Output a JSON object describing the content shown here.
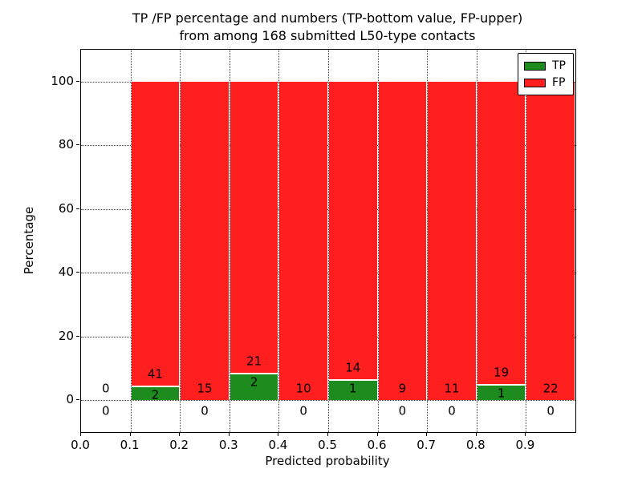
{
  "chart_data": {
    "type": "bar",
    "stacked": true,
    "title_line1": "TP /FP percentage and numbers (TP-bottom value, FP-upper)",
    "title_line2": "from among 168 submitted L50-type contacts",
    "xlabel": "Predicted probability",
    "ylabel": "Percentage",
    "xlim": [
      0.0,
      1.0
    ],
    "ylim": [
      -10,
      110
    ],
    "grid": "dotted",
    "xticks": [
      0.0,
      0.1,
      0.2,
      0.3,
      0.4,
      0.5,
      0.6,
      0.7,
      0.8,
      0.9
    ],
    "xtick_labels": [
      "0.0",
      "0.1",
      "0.2",
      "0.3",
      "0.4",
      "0.5",
      "0.6",
      "0.7",
      "0.8",
      "0.9"
    ],
    "yticks": [
      0,
      20,
      40,
      60,
      80,
      100
    ],
    "ytick_labels": [
      "0",
      "20",
      "40",
      "60",
      "80",
      "100"
    ],
    "total_contacts": 168,
    "bins": [
      {
        "range": [
          0.0,
          0.1
        ],
        "tp_count": 0,
        "fp_count": 0,
        "tp_label": "0",
        "fp_label": "0"
      },
      {
        "range": [
          0.1,
          0.2
        ],
        "tp_count": 2,
        "fp_count": 41,
        "tp_label": "2",
        "fp_label": "41"
      },
      {
        "range": [
          0.2,
          0.3
        ],
        "tp_count": 0,
        "fp_count": 15,
        "tp_label": "0",
        "fp_label": "15"
      },
      {
        "range": [
          0.3,
          0.4
        ],
        "tp_count": 2,
        "fp_count": 21,
        "tp_label": "2",
        "fp_label": "21"
      },
      {
        "range": [
          0.4,
          0.5
        ],
        "tp_count": 0,
        "fp_count": 10,
        "tp_label": "0",
        "fp_label": "10"
      },
      {
        "range": [
          0.5,
          0.6
        ],
        "tp_count": 1,
        "fp_count": 14,
        "tp_label": "1",
        "fp_label": "14"
      },
      {
        "range": [
          0.6,
          0.7
        ],
        "tp_count": 0,
        "fp_count": 9,
        "tp_label": "0",
        "fp_label": "9"
      },
      {
        "range": [
          0.7,
          0.8
        ],
        "tp_count": 0,
        "fp_count": 11,
        "tp_label": "0",
        "fp_label": "11"
      },
      {
        "range": [
          0.8,
          0.9
        ],
        "tp_count": 1,
        "fp_count": 19,
        "tp_label": "1",
        "fp_label": "19"
      },
      {
        "range": [
          0.9,
          1.0
        ],
        "tp_count": 0,
        "fp_count": 22,
        "tp_label": "0",
        "fp_label": "22"
      }
    ],
    "legend": [
      {
        "label": "TP",
        "color": "#1e8b1e"
      },
      {
        "label": "FP",
        "color": "#ff1f1f"
      }
    ],
    "colors": {
      "tp_bar": "#1e8b1e",
      "fp_bar": "#ff1f1f",
      "segment_edge": "#ffffff",
      "grid": "#4a4a4a",
      "text": "#000000",
      "background": "#ffffff"
    },
    "legend_position": "upper-right"
  }
}
